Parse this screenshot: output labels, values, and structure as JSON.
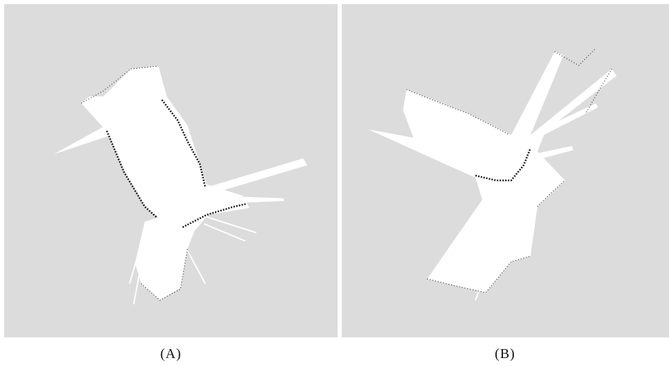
{
  "figure": {
    "panels": [
      {
        "caption": "(A)"
      },
      {
        "caption": "(B)"
      }
    ]
  }
}
